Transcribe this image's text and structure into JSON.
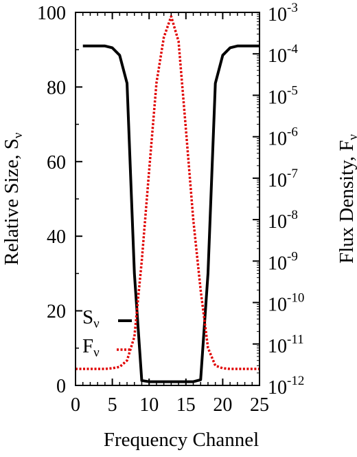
{
  "chart_data": {
    "type": "line",
    "xlabel": "Frequency Channel",
    "ylabel_left": {
      "text": "Relative Size, S",
      "subscript": "ν"
    },
    "ylabel_right": {
      "text": "Flux Density, F",
      "subscript": "ν"
    },
    "xlim": [
      0,
      25
    ],
    "ylim_left": [
      0,
      100
    ],
    "ylim_right_log10": [
      -12,
      -3
    ],
    "right_axis_scale": "log",
    "grid": false,
    "legend_placement": "bottom-left",
    "x_ticks": [
      "0",
      "5",
      "10",
      "15",
      "20",
      "25"
    ],
    "y_left_ticks": [
      "0",
      "20",
      "40",
      "60",
      "80",
      "100"
    ],
    "y_right_ticks": [
      {
        "base": "10",
        "exp": "-12"
      },
      {
        "base": "10",
        "exp": "-11"
      },
      {
        "base": "10",
        "exp": "-10"
      },
      {
        "base": "10",
        "exp": "-9"
      },
      {
        "base": "10",
        "exp": "-8"
      },
      {
        "base": "10",
        "exp": "-7"
      },
      {
        "base": "10",
        "exp": "-6"
      },
      {
        "base": "10",
        "exp": "-5"
      },
      {
        "base": "10",
        "exp": "-4"
      },
      {
        "base": "10",
        "exp": "-3"
      }
    ],
    "series": [
      {
        "name": "S",
        "name_subscript": "ν",
        "axis": "left",
        "color": "#000000",
        "style": "solid",
        "x": [
          1,
          2,
          3,
          4,
          5,
          6,
          7,
          8,
          9,
          10,
          11,
          12,
          13,
          14,
          15,
          16,
          17,
          18,
          19,
          20,
          21,
          22,
          23,
          24,
          25
        ],
        "y": [
          91,
          91,
          91,
          91,
          90.5,
          88.5,
          81,
          30,
          1.3,
          1,
          1,
          1,
          1,
          1,
          1,
          1,
          1.5,
          30,
          81,
          88.5,
          90.5,
          91,
          91,
          91,
          91
        ]
      },
      {
        "name": "F",
        "name_subscript": "ν",
        "axis": "right",
        "color": "#e00000",
        "style": "dotted",
        "x": [
          0,
          1,
          2,
          3,
          4,
          5,
          6,
          7,
          8,
          9,
          10,
          11,
          12,
          13,
          14,
          15,
          16,
          17,
          18,
          19,
          20,
          21,
          22,
          23,
          24,
          25
        ],
        "y": [
          2.5e-12,
          2.5e-12,
          2.5e-12,
          2.5e-12,
          2.5e-12,
          2.6e-12,
          2.8e-12,
          4e-12,
          1.5e-11,
          1e-09,
          1.5e-07,
          2e-05,
          0.00025,
          0.0008,
          0.0002,
          1.5e-06,
          1e-08,
          2e-10,
          8e-12,
          3e-12,
          2.6e-12,
          2.5e-12,
          2.5e-12,
          2.5e-12,
          2.5e-12,
          2.5e-12
        ]
      }
    ]
  }
}
